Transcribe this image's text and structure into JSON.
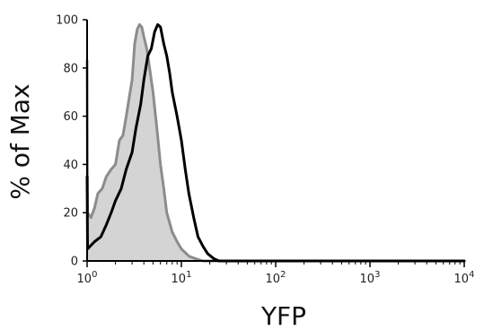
{
  "chart_data": {
    "type": "area",
    "xlabel": "YFP",
    "ylabel": "% of Max",
    "x_scale": "log",
    "xlim": [
      1,
      10000
    ],
    "ylim": [
      0,
      100
    ],
    "x_ticks": [
      {
        "value": 1,
        "base": "10",
        "exp": "0"
      },
      {
        "value": 10,
        "base": "10",
        "exp": "1"
      },
      {
        "value": 100,
        "base": "10",
        "exp": "2"
      },
      {
        "value": 1000,
        "base": "10",
        "exp": "3"
      },
      {
        "value": 10000,
        "base": "10",
        "exp": "4"
      }
    ],
    "y_ticks": [
      0,
      20,
      40,
      60,
      80,
      100
    ],
    "grid": false,
    "series": [
      {
        "color": "#8c8c8c",
        "fill": "#d4d4d4",
        "filled": true,
        "points": [
          [
            1.0,
            83
          ],
          [
            1.01,
            20
          ],
          [
            1.1,
            18
          ],
          [
            1.2,
            22
          ],
          [
            1.3,
            28
          ],
          [
            1.45,
            30
          ],
          [
            1.6,
            35
          ],
          [
            1.8,
            38
          ],
          [
            2.0,
            40
          ],
          [
            2.2,
            50
          ],
          [
            2.4,
            52
          ],
          [
            2.6,
            60
          ],
          [
            2.8,
            68
          ],
          [
            3.0,
            75
          ],
          [
            3.2,
            90
          ],
          [
            3.4,
            96
          ],
          [
            3.6,
            98
          ],
          [
            3.8,
            97
          ],
          [
            4.0,
            93
          ],
          [
            4.3,
            88
          ],
          [
            4.6,
            80
          ],
          [
            5.0,
            70
          ],
          [
            5.5,
            55
          ],
          [
            6.0,
            40
          ],
          [
            6.5,
            30
          ],
          [
            7.0,
            20
          ],
          [
            8.0,
            12
          ],
          [
            9.0,
            8
          ],
          [
            10.0,
            5
          ],
          [
            12.0,
            2
          ],
          [
            14.0,
            1
          ],
          [
            17.0,
            0
          ],
          [
            10000,
            0
          ]
        ]
      },
      {
        "color": "#000000",
        "fill": "none",
        "filled": false,
        "points": [
          [
            1.0,
            35
          ],
          [
            1.01,
            5
          ],
          [
            1.2,
            8
          ],
          [
            1.4,
            10
          ],
          [
            1.6,
            15
          ],
          [
            1.8,
            20
          ],
          [
            2.0,
            25
          ],
          [
            2.3,
            30
          ],
          [
            2.6,
            38
          ],
          [
            3.0,
            45
          ],
          [
            3.3,
            55
          ],
          [
            3.7,
            65
          ],
          [
            4.0,
            75
          ],
          [
            4.4,
            85
          ],
          [
            4.8,
            88
          ],
          [
            5.2,
            95
          ],
          [
            5.6,
            98
          ],
          [
            6.0,
            97
          ],
          [
            6.5,
            90
          ],
          [
            7.0,
            85
          ],
          [
            7.5,
            78
          ],
          [
            8.0,
            70
          ],
          [
            9.0,
            60
          ],
          [
            10.0,
            50
          ],
          [
            11.0,
            38
          ],
          [
            12.0,
            28
          ],
          [
            13.5,
            18
          ],
          [
            15.0,
            10
          ],
          [
            17.0,
            6
          ],
          [
            19.0,
            3
          ],
          [
            22.0,
            1
          ],
          [
            25.0,
            0
          ],
          [
            10000,
            0
          ]
        ]
      }
    ]
  }
}
